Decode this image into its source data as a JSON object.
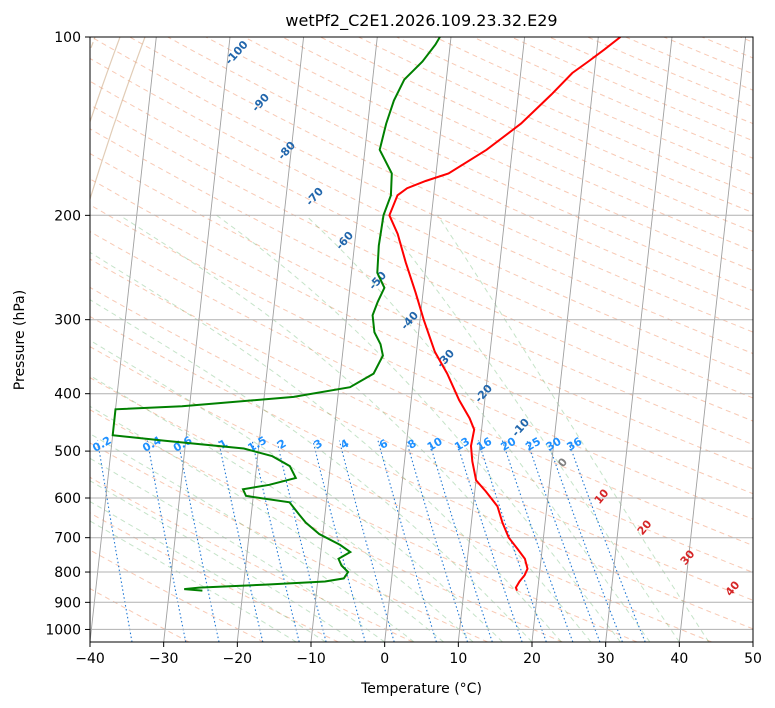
{
  "chart_data": {
    "type": "line",
    "title": "wetPf2_C2E1.2026.109.23.32.E29",
    "xlabel": "Temperature (°C)",
    "ylabel": "Pressure (hPa)",
    "xlim": [
      -40,
      50
    ],
    "ylim": [
      1050,
      100
    ],
    "x_ticks": [
      -40,
      -30,
      -20,
      -10,
      0,
      10,
      20,
      30,
      40,
      50
    ],
    "y_ticks": [
      100,
      200,
      300,
      400,
      500,
      600,
      700,
      800,
      900,
      1000
    ],
    "temperature_color": "#ff0000",
    "dewpoint_color": "#008000",
    "series": [
      {
        "name": "Temperature",
        "points": [
          [
            17.2,
            860
          ],
          [
            17.0,
            850
          ],
          [
            17.4,
            830
          ],
          [
            18.0,
            810
          ],
          [
            18.3,
            790
          ],
          [
            17.8,
            760
          ],
          [
            16.6,
            730
          ],
          [
            15.3,
            700
          ],
          [
            14.2,
            660
          ],
          [
            13.3,
            620
          ],
          [
            11.5,
            585
          ],
          [
            10.0,
            560
          ],
          [
            9.2,
            520
          ],
          [
            8.8,
            490
          ],
          [
            9.0,
            460
          ],
          [
            8.2,
            440
          ],
          [
            6.5,
            410
          ],
          [
            4.5,
            370
          ],
          [
            2.5,
            340
          ],
          [
            0.5,
            300
          ],
          [
            -1.0,
            270
          ],
          [
            -2.8,
            240
          ],
          [
            -4.3,
            215
          ],
          [
            -5.7,
            200
          ],
          [
            -4.9,
            185
          ],
          [
            -3.7,
            180
          ],
          [
            -1.3,
            175
          ],
          [
            1.7,
            170
          ],
          [
            6.5,
            155
          ],
          [
            10.8,
            140
          ],
          [
            14.5,
            125
          ],
          [
            17.0,
            115
          ],
          [
            19.0,
            110
          ],
          [
            21.0,
            105
          ],
          [
            23.0,
            100
          ]
        ]
      },
      {
        "name": "Dewpoint",
        "points": [
          [
            -25.5,
            860
          ],
          [
            -28.0,
            855
          ],
          [
            -26.0,
            850
          ],
          [
            -17.0,
            840
          ],
          [
            -9.0,
            830
          ],
          [
            -6.5,
            820
          ],
          [
            -6.0,
            800
          ],
          [
            -7.0,
            780
          ],
          [
            -7.5,
            760
          ],
          [
            -6.0,
            740
          ],
          [
            -7.5,
            720
          ],
          [
            -10.5,
            690
          ],
          [
            -12.5,
            660
          ],
          [
            -13.5,
            640
          ],
          [
            -15.0,
            610
          ],
          [
            -21.0,
            595
          ],
          [
            -21.5,
            580
          ],
          [
            -18.0,
            570
          ],
          [
            -14.5,
            555
          ],
          [
            -15.5,
            530
          ],
          [
            -18.0,
            510
          ],
          [
            -22.0,
            495
          ],
          [
            -33.0,
            480
          ],
          [
            -40.0,
            470
          ],
          [
            -40.0,
            425
          ],
          [
            -31.0,
            420
          ],
          [
            -16.0,
            405
          ],
          [
            -8.5,
            390
          ],
          [
            -5.5,
            370
          ],
          [
            -4.5,
            345
          ],
          [
            -5.0,
            330
          ],
          [
            -6.0,
            315
          ],
          [
            -6.5,
            295
          ],
          [
            -6.0,
            280
          ],
          [
            -5.3,
            265
          ],
          [
            -6.5,
            250
          ],
          [
            -6.7,
            225
          ],
          [
            -6.5,
            200
          ],
          [
            -5.8,
            185
          ],
          [
            -6.0,
            170
          ],
          [
            -8.0,
            155
          ],
          [
            -7.5,
            140
          ],
          [
            -6.8,
            128
          ],
          [
            -5.7,
            118
          ],
          [
            -3.5,
            110
          ],
          [
            -2.0,
            103
          ],
          [
            -1.5,
            100
          ]
        ]
      }
    ],
    "potential_temperature_labels": [
      "-100",
      "-90",
      "-80",
      "-70",
      "-60",
      "-50",
      "-40",
      "-30",
      "-20",
      "-10"
    ],
    "mixing_ratio_labels": [
      "0.1",
      "0.2",
      "0.4",
      "0.6",
      "1",
      "1.5",
      "2",
      "3",
      "4",
      "6",
      "8",
      "10",
      "13",
      "16",
      "20",
      "25",
      "30",
      "36"
    ],
    "moist_adiabat_labels": [
      "0",
      "10",
      "20",
      "30",
      "40"
    ]
  }
}
